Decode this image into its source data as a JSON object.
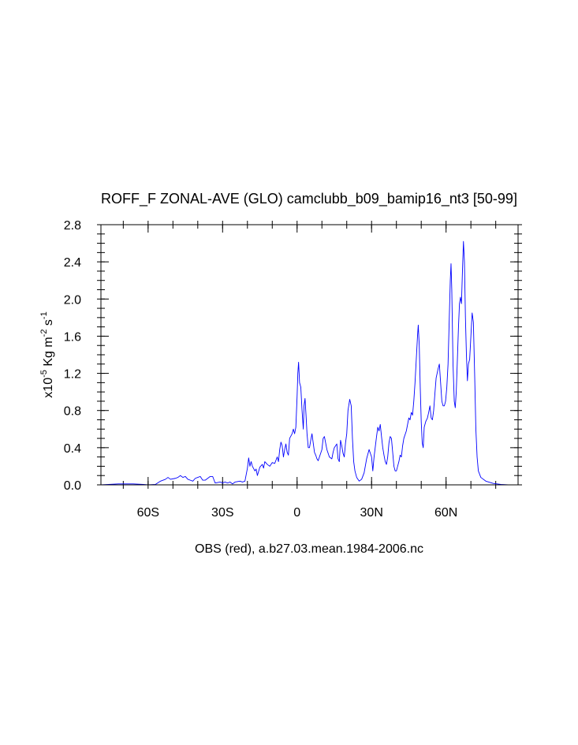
{
  "chart_data": {
    "type": "line",
    "title": "ROFF_F ZONAL-AVE (GLO) camclubb_b09_bamip16_nt3 [50-99]",
    "xlabel": "OBS (red), a.b27.03.mean.1984-2006.nc",
    "ylabel": {
      "prefix": "x10",
      "exp": "-5",
      "units_a": " Kg m",
      "units_b": " s",
      "exp2": "-2",
      "exp3": "-1"
    },
    "xlim": [
      -79,
      89
    ],
    "ylim": [
      0.0,
      2.8
    ],
    "x_ticks": [
      {
        "value": -60,
        "label": "60S"
      },
      {
        "value": -30,
        "label": "30S"
      },
      {
        "value": 0,
        "label": "0"
      },
      {
        "value": 30,
        "label": "30N"
      },
      {
        "value": 60,
        "label": "60N"
      }
    ],
    "y_ticks": [
      {
        "value": 0.0,
        "label": "0.0"
      },
      {
        "value": 0.4,
        "label": "0.4"
      },
      {
        "value": 0.8,
        "label": "0.8"
      },
      {
        "value": 1.2,
        "label": "1.2"
      },
      {
        "value": 1.6,
        "label": "1.6"
      },
      {
        "value": 2.0,
        "label": "2.0"
      },
      {
        "value": 2.4,
        "label": "2.4"
      },
      {
        "value": 2.8,
        "label": "2.8"
      }
    ],
    "series": [
      {
        "name": "camclubb_b09_bamip16_nt3",
        "color": "#0000ff",
        "points": [
          [
            -79,
            0.0
          ],
          [
            -72,
            0.01
          ],
          [
            -66,
            0.01
          ],
          [
            -62,
            0.005
          ],
          [
            -60,
            0.0
          ],
          [
            -57,
            0.005
          ],
          [
            -55,
            0.04
          ],
          [
            -53,
            0.06
          ],
          [
            -52,
            0.08
          ],
          [
            -51,
            0.06
          ],
          [
            -49,
            0.07
          ],
          [
            -48,
            0.08
          ],
          [
            -47,
            0.1
          ],
          [
            -46,
            0.08
          ],
          [
            -45,
            0.09
          ],
          [
            -44,
            0.06
          ],
          [
            -43,
            0.05
          ],
          [
            -42,
            0.04
          ],
          [
            -41,
            0.07
          ],
          [
            -40,
            0.08
          ],
          [
            -39,
            0.09
          ],
          [
            -38,
            0.05
          ],
          [
            -37,
            0.05
          ],
          [
            -36,
            0.07
          ],
          [
            -35,
            0.09
          ],
          [
            -34,
            0.09
          ],
          [
            -33,
            0.02
          ],
          [
            -31,
            0.03
          ],
          [
            -30,
            0.02
          ],
          [
            -29,
            0.03
          ],
          [
            -28,
            0.02
          ],
          [
            -27,
            0.03
          ],
          [
            -26,
            0.01
          ],
          [
            -25,
            0.03
          ],
          [
            -23,
            0.04
          ],
          [
            -22,
            0.03
          ],
          [
            -21,
            0.04
          ],
          [
            -20,
            0.18
          ],
          [
            -19.5,
            0.29
          ],
          [
            -19,
            0.2
          ],
          [
            -18.5,
            0.25
          ],
          [
            -18,
            0.2
          ],
          [
            -17,
            0.15
          ],
          [
            -16.5,
            0.17
          ],
          [
            -16,
            0.1
          ],
          [
            -15,
            0.19
          ],
          [
            -14,
            0.22
          ],
          [
            -13.5,
            0.18
          ],
          [
            -13,
            0.25
          ],
          [
            -12,
            0.22
          ],
          [
            -11,
            0.2
          ],
          [
            -10,
            0.24
          ],
          [
            -9,
            0.23
          ],
          [
            -8,
            0.3
          ],
          [
            -7.5,
            0.25
          ],
          [
            -7,
            0.38
          ],
          [
            -6.5,
            0.46
          ],
          [
            -6,
            0.42
          ],
          [
            -5.5,
            0.3
          ],
          [
            -5,
            0.38
          ],
          [
            -4.5,
            0.44
          ],
          [
            -4,
            0.35
          ],
          [
            -3.5,
            0.32
          ],
          [
            -3,
            0.5
          ],
          [
            -2,
            0.55
          ],
          [
            -1.5,
            0.6
          ],
          [
            -1,
            0.55
          ],
          [
            -0.5,
            0.62
          ],
          [
            0,
            0.95
          ],
          [
            0.3,
            1.2
          ],
          [
            0.6,
            1.32
          ],
          [
            1,
            1.1
          ],
          [
            1.5,
            1.05
          ],
          [
            2,
            0.8
          ],
          [
            2.5,
            0.6
          ],
          [
            2.8,
            0.85
          ],
          [
            3.2,
            0.93
          ],
          [
            3.6,
            0.75
          ],
          [
            4,
            0.55
          ],
          [
            4.5,
            0.4
          ],
          [
            5,
            0.4
          ],
          [
            5.5,
            0.48
          ],
          [
            6,
            0.55
          ],
          [
            6.5,
            0.45
          ],
          [
            7,
            0.35
          ],
          [
            7.5,
            0.32
          ],
          [
            8,
            0.28
          ],
          [
            8.5,
            0.26
          ],
          [
            9,
            0.3
          ],
          [
            10,
            0.38
          ],
          [
            10.5,
            0.5
          ],
          [
            11,
            0.52
          ],
          [
            11.5,
            0.45
          ],
          [
            12,
            0.38
          ],
          [
            13,
            0.3
          ],
          [
            14,
            0.28
          ],
          [
            14.5,
            0.35
          ],
          [
            15,
            0.4
          ],
          [
            16,
            0.44
          ],
          [
            16.5,
            0.28
          ],
          [
            17,
            0.25
          ],
          [
            17.5,
            0.48
          ],
          [
            18,
            0.42
          ],
          [
            18.5,
            0.34
          ],
          [
            19,
            0.3
          ],
          [
            19.5,
            0.45
          ],
          [
            20,
            0.55
          ],
          [
            20.5,
            0.8
          ],
          [
            21.2,
            0.92
          ],
          [
            21.8,
            0.85
          ],
          [
            22.3,
            0.5
          ],
          [
            22.8,
            0.25
          ],
          [
            23.3,
            0.15
          ],
          [
            24,
            0.08
          ],
          [
            25,
            0.04
          ],
          [
            26,
            0.06
          ],
          [
            27,
            0.13
          ],
          [
            28,
            0.28
          ],
          [
            29,
            0.38
          ],
          [
            30,
            0.3
          ],
          [
            30.5,
            0.15
          ],
          [
            31,
            0.3
          ],
          [
            32,
            0.52
          ],
          [
            32.5,
            0.62
          ],
          [
            33,
            0.58
          ],
          [
            33.5,
            0.65
          ],
          [
            34,
            0.52
          ],
          [
            34.5,
            0.4
          ],
          [
            35,
            0.32
          ],
          [
            35.5,
            0.25
          ],
          [
            36,
            0.22
          ],
          [
            36.5,
            0.3
          ],
          [
            37,
            0.45
          ],
          [
            37.5,
            0.52
          ],
          [
            38,
            0.5
          ],
          [
            38.5,
            0.35
          ],
          [
            39,
            0.2
          ],
          [
            39.5,
            0.15
          ],
          [
            40,
            0.15
          ],
          [
            40.5,
            0.2
          ],
          [
            41,
            0.25
          ],
          [
            41.5,
            0.32
          ],
          [
            42,
            0.3
          ],
          [
            42.5,
            0.42
          ],
          [
            43,
            0.5
          ],
          [
            44,
            0.58
          ],
          [
            44.5,
            0.65
          ],
          [
            45,
            0.72
          ],
          [
            45.5,
            0.7
          ],
          [
            46,
            0.78
          ],
          [
            46.5,
            0.75
          ],
          [
            47,
            0.9
          ],
          [
            47.5,
            1.1
          ],
          [
            48,
            1.35
          ],
          [
            48.5,
            1.6
          ],
          [
            48.8,
            1.72
          ],
          [
            49.2,
            1.5
          ],
          [
            49.6,
            1.05
          ],
          [
            50,
            0.68
          ],
          [
            50.4,
            0.45
          ],
          [
            50.8,
            0.4
          ],
          [
            51.2,
            0.62
          ],
          [
            51.8,
            0.68
          ],
          [
            52.5,
            0.72
          ],
          [
            53,
            0.78
          ],
          [
            53.5,
            0.85
          ],
          [
            54,
            0.72
          ],
          [
            54.5,
            0.7
          ],
          [
            55,
            0.8
          ],
          [
            55.5,
            0.98
          ],
          [
            56,
            1.15
          ],
          [
            56.8,
            1.25
          ],
          [
            57.3,
            1.3
          ],
          [
            57.8,
            1.1
          ],
          [
            58.3,
            0.9
          ],
          [
            58.8,
            0.85
          ],
          [
            59.3,
            0.85
          ],
          [
            59.8,
            0.9
          ],
          [
            60.3,
            1.05
          ],
          [
            60.8,
            1.3
          ],
          [
            61.3,
            1.8
          ],
          [
            61.7,
            2.2
          ],
          [
            62,
            2.38
          ],
          [
            62.3,
            2.1
          ],
          [
            62.8,
            1.3
          ],
          [
            63.3,
            0.9
          ],
          [
            63.7,
            0.83
          ],
          [
            64.1,
            1.0
          ],
          [
            64.5,
            1.3
          ],
          [
            65,
            1.7
          ],
          [
            65.4,
            1.95
          ],
          [
            65.8,
            2.02
          ],
          [
            66.2,
            1.95
          ],
          [
            66.6,
            2.3
          ],
          [
            67,
            2.62
          ],
          [
            67.4,
            2.4
          ],
          [
            67.8,
            1.8
          ],
          [
            68.2,
            1.4
          ],
          [
            68.6,
            1.12
          ],
          [
            69,
            1.3
          ],
          [
            69.5,
            1.35
          ],
          [
            70,
            1.6
          ],
          [
            70.5,
            1.85
          ],
          [
            71,
            1.75
          ],
          [
            71.5,
            1.2
          ],
          [
            72,
            0.6
          ],
          [
            72.5,
            0.3
          ],
          [
            73,
            0.15
          ],
          [
            74,
            0.08
          ],
          [
            76,
            0.04
          ],
          [
            79,
            0.015
          ],
          [
            82,
            0.005
          ],
          [
            85,
            0.0
          ],
          [
            89,
            0.0
          ]
        ]
      }
    ]
  }
}
